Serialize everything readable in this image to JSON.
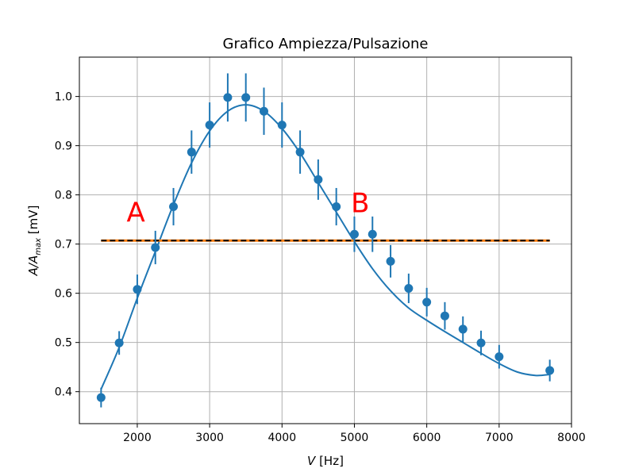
{
  "chart_data": {
    "type": "scatter",
    "title": "Grafico Ampiezza/Pulsazione",
    "xlabel_main": "V",
    "xlabel_unit": " [Hz]",
    "ylabel_base": "A/A",
    "ylabel_sub": "max",
    "ylabel_unit": " [mV]",
    "xlim": [
      1200,
      8000
    ],
    "ylim": [
      0.335,
      1.08
    ],
    "xticks": [
      2000,
      3000,
      4000,
      5000,
      6000,
      7000,
      8000
    ],
    "yticks": [
      0.4,
      0.5,
      0.6,
      0.7,
      0.8,
      0.9,
      1.0
    ],
    "xtick_labels": [
      "2000",
      "3000",
      "4000",
      "5000",
      "6000",
      "7000",
      "8000"
    ],
    "ytick_labels": [
      "0.4",
      "0.5",
      "0.6",
      "0.7",
      "0.8",
      "0.9",
      "1.0"
    ],
    "grid": true,
    "series": [
      {
        "kind": "errorbar",
        "color": "#1f77b4",
        "x": [
          1500,
          1750,
          2000,
          2250,
          2500,
          2750,
          3000,
          3250,
          3500,
          3750,
          4000,
          4250,
          4500,
          4750,
          5000,
          5250,
          5500,
          5750,
          6000,
          6250,
          6500,
          6750,
          7000,
          7700
        ],
        "y": [
          0.388,
          0.499,
          0.608,
          0.693,
          0.776,
          0.887,
          0.942,
          0.998,
          0.998,
          0.97,
          0.942,
          0.887,
          0.831,
          0.776,
          0.72,
          0.72,
          0.665,
          0.61,
          0.582,
          0.554,
          0.527,
          0.499,
          0.471,
          0.443
        ],
        "yerr": [
          0.02,
          0.024,
          0.03,
          0.034,
          0.038,
          0.044,
          0.046,
          0.049,
          0.049,
          0.048,
          0.046,
          0.044,
          0.041,
          0.038,
          0.036,
          0.036,
          0.033,
          0.03,
          0.029,
          0.028,
          0.026,
          0.025,
          0.024,
          0.022
        ]
      },
      {
        "kind": "fit-curve",
        "color": "#1f77b4",
        "x": [
          1500,
          1750,
          2000,
          2250,
          2500,
          2750,
          3000,
          3250,
          3500,
          3750,
          4000,
          4250,
          4500,
          4750,
          5000,
          5250,
          5500,
          5750,
          6000,
          6250,
          6500,
          6750,
          7000,
          7250,
          7500,
          7700
        ],
        "y": [
          0.405,
          0.49,
          0.59,
          0.685,
          0.78,
          0.865,
          0.93,
          0.97,
          0.983,
          0.97,
          0.935,
          0.885,
          0.825,
          0.765,
          0.705,
          0.65,
          0.605,
          0.57,
          0.545,
          0.522,
          0.5,
          0.478,
          0.457,
          0.44,
          0.433,
          0.435
        ]
      },
      {
        "kind": "threshold-line",
        "color": "#ff7f0e",
        "x": [
          1500,
          7700
        ],
        "y": [
          0.707,
          0.707
        ]
      },
      {
        "kind": "threshold-line-dashed",
        "color": "#000000",
        "x": [
          1500,
          7700
        ],
        "y": [
          0.707,
          0.707
        ]
      }
    ],
    "annotations": [
      {
        "text": "A",
        "x": 1980,
        "y": 0.745,
        "color": "#ff0000"
      },
      {
        "text": "B",
        "x": 5080,
        "y": 0.765,
        "color": "#ff0000"
      }
    ]
  }
}
